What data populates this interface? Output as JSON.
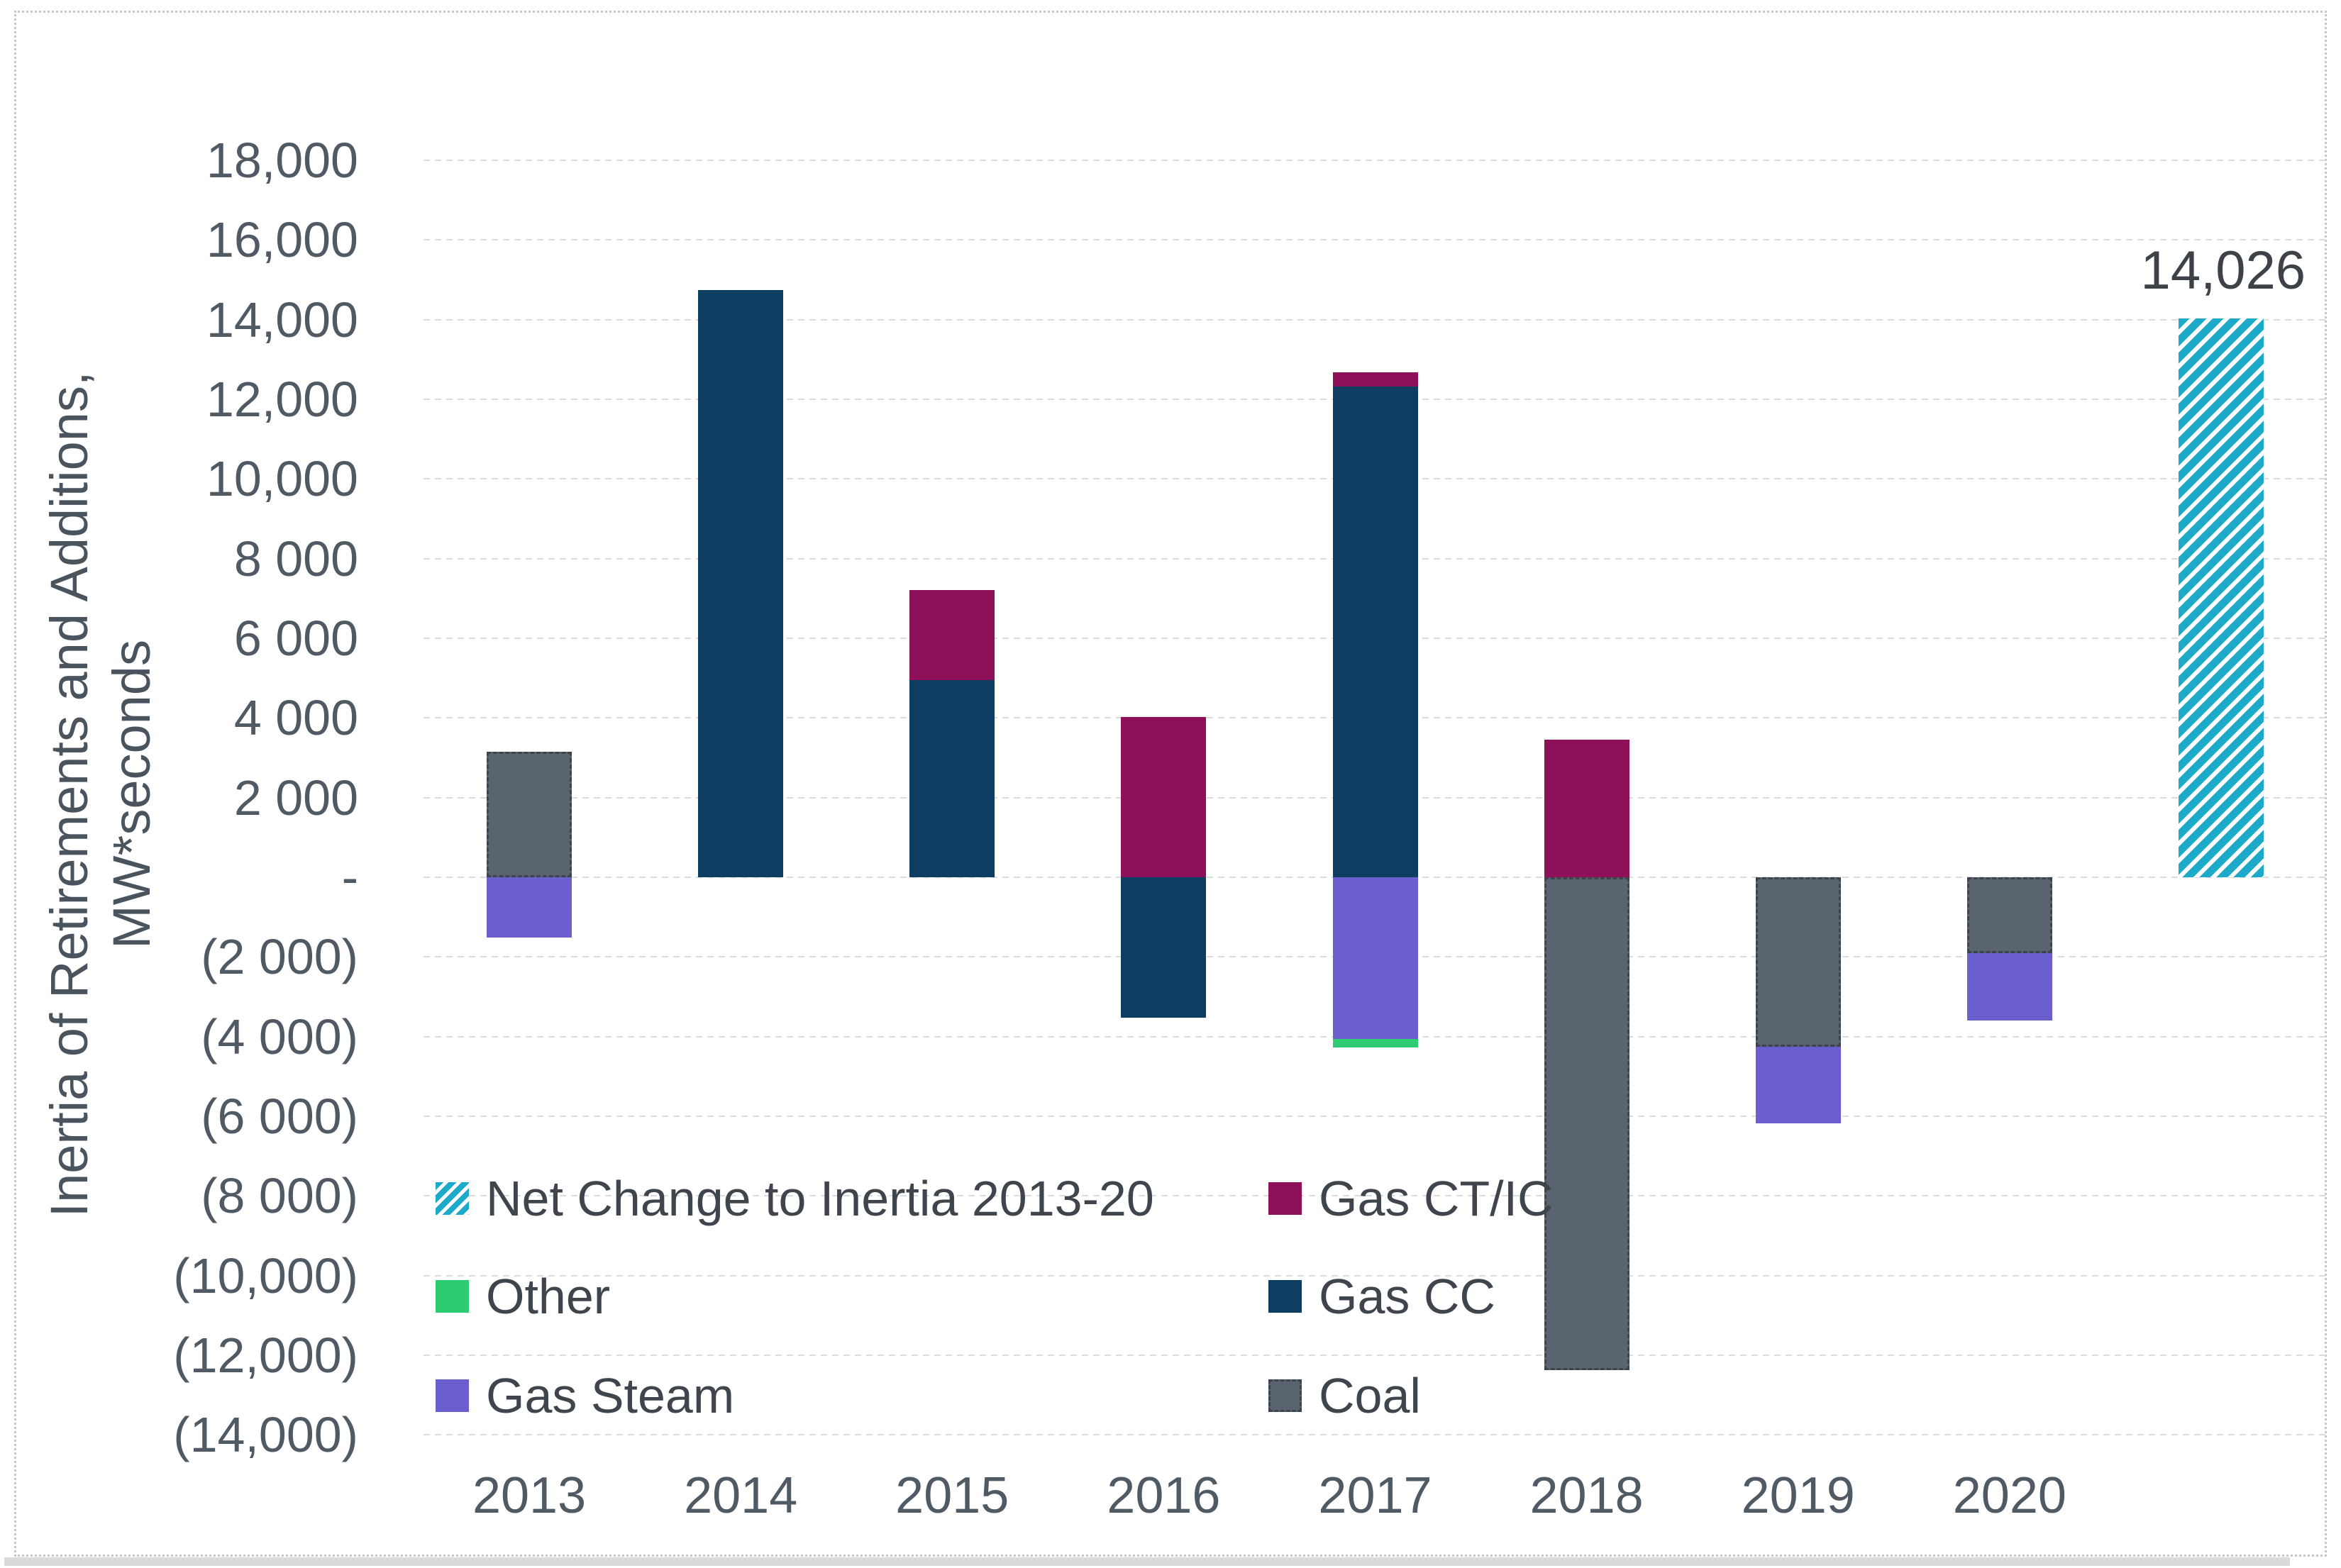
{
  "y_axis": {
    "title_line1": "Inertia of Retirements and Additions,",
    "title_line2": "MW*seconds",
    "ticks": [
      {
        "value": 18000,
        "label": "18,000"
      },
      {
        "value": 16000,
        "label": "16,000"
      },
      {
        "value": 14000,
        "label": "14,000"
      },
      {
        "value": 12000,
        "label": "12,000"
      },
      {
        "value": 10000,
        "label": "10,000"
      },
      {
        "value": 8000,
        "label": "8 000"
      },
      {
        "value": 6000,
        "label": "6 000"
      },
      {
        "value": 4000,
        "label": "4 000"
      },
      {
        "value": 2000,
        "label": "2 000"
      },
      {
        "value": 0,
        "label": "-"
      },
      {
        "value": -2000,
        "label": "(2 000)"
      },
      {
        "value": -4000,
        "label": "(4 000)"
      },
      {
        "value": -6000,
        "label": "(6 000)"
      },
      {
        "value": -8000,
        "label": "(8 000)"
      },
      {
        "value": -10000,
        "label": "(10,000)"
      },
      {
        "value": -12000,
        "label": "(12,000)"
      },
      {
        "value": -14000,
        "label": "(14,000)"
      }
    ]
  },
  "chart_data": {
    "type": "bar",
    "stacked": true,
    "title": "",
    "xlabel": "",
    "ylabel": "Inertia of Retirements and Additions, MW*seconds",
    "ylim": [
      -14000,
      18000
    ],
    "gridline_step": 2000,
    "grid": true,
    "categories": [
      "2013",
      "2014",
      "2015",
      "2016",
      "2017",
      "2018",
      "2019",
      "2020",
      ""
    ],
    "series_colors": {
      "Net Change to Inertia 2013-20": "#1caac8",
      "Gas CT/IC": "#8e1058",
      "Other": "#2fcb71",
      "Gas CC": "#0e3d62",
      "Gas Steam": "#6b5fcf",
      "Coal": "#5a646e"
    },
    "columns": [
      {
        "year": "2013",
        "segments": [
          {
            "series": "Coal",
            "value": 3150
          },
          {
            "series": "Gas Steam",
            "value": -1510
          }
        ]
      },
      {
        "year": "2014",
        "segments": [
          {
            "series": "Gas CC",
            "value": 14740
          }
        ]
      },
      {
        "year": "2015",
        "segments": [
          {
            "series": "Gas CC",
            "value": 4950
          },
          {
            "series": "Gas CT/IC",
            "value": 2260
          }
        ]
      },
      {
        "year": "2016",
        "segments": [
          {
            "series": "Gas CT/IC",
            "value": 4030
          },
          {
            "series": "Gas CC",
            "value": -3520
          }
        ]
      },
      {
        "year": "2017",
        "segments": [
          {
            "series": "Gas CC",
            "value": 12320
          },
          {
            "series": "Gas CT/IC",
            "value": 360
          },
          {
            "series": "Gas Steam",
            "value": -4060
          },
          {
            "series": "Other",
            "value": -220
          }
        ]
      },
      {
        "year": "2018",
        "segments": [
          {
            "series": "Gas CT/IC",
            "value": 3450
          },
          {
            "series": "Coal",
            "value": -12380
          }
        ]
      },
      {
        "year": "2019",
        "segments": [
          {
            "series": "Coal",
            "value": -4250
          },
          {
            "series": "Gas Steam",
            "value": -1930
          }
        ]
      },
      {
        "year": "2020",
        "segments": [
          {
            "series": "Coal",
            "value": -1900
          },
          {
            "series": "Gas Steam",
            "value": -1690
          }
        ]
      },
      {
        "year": "",
        "segments": [
          {
            "series": "Net Change to Inertia 2013-20",
            "value": 14026,
            "hatched": true
          }
        ]
      }
    ],
    "annotation": {
      "text": "14,026",
      "value": 14026
    },
    "legend_position": "inside-lower-left"
  },
  "legend": {
    "items": [
      {
        "label": "Net Change to Inertia 2013-20",
        "series": "Net Change to Inertia 2013-20",
        "hatched": true
      },
      {
        "label": "Other",
        "series": "Other",
        "hatched": false
      },
      {
        "label": "Gas Steam",
        "series": "Gas Steam",
        "hatched": false
      },
      {
        "label": "Gas CT/IC",
        "series": "Gas CT/IC",
        "hatched": false
      },
      {
        "label": "Gas CC",
        "series": "Gas CC",
        "hatched": false
      },
      {
        "label": "Coal",
        "series": "Coal",
        "hatched": false
      }
    ]
  }
}
